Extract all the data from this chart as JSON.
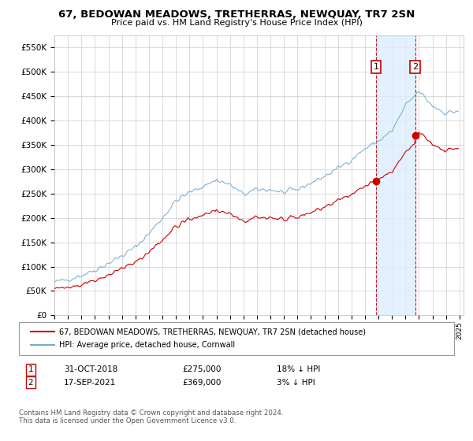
{
  "title": "67, BEDOWAN MEADOWS, TRETHERRAS, NEWQUAY, TR7 2SN",
  "subtitle": "Price paid vs. HM Land Registry's House Price Index (HPI)",
  "legend_label_red": "67, BEDOWAN MEADOWS, TRETHERRAS, NEWQUAY, TR7 2SN (detached house)",
  "legend_label_blue": "HPI: Average price, detached house, Cornwall",
  "annotation1_date": "31-OCT-2018",
  "annotation1_price": "£275,000",
  "annotation1_hpi": "18% ↓ HPI",
  "annotation1_year": 2018.83,
  "annotation1_value": 275000,
  "annotation2_date": "17-SEP-2021",
  "annotation2_price": "£369,000",
  "annotation2_hpi": "3% ↓ HPI",
  "annotation2_year": 2021.71,
  "annotation2_value": 369000,
  "footer": "Contains HM Land Registry data © Crown copyright and database right 2024.\nThis data is licensed under the Open Government Licence v3.0.",
  "ylim": [
    0,
    575000
  ],
  "yticks": [
    0,
    50000,
    100000,
    150000,
    200000,
    250000,
    300000,
    350000,
    400000,
    450000,
    500000,
    550000
  ],
  "xlim_start": 1995.0,
  "xlim_end": 2025.3,
  "background_color": "#ffffff",
  "grid_color": "#cccccc",
  "red_color": "#cc0000",
  "blue_color": "#77aacc",
  "shading_color": "#ddeeff"
}
